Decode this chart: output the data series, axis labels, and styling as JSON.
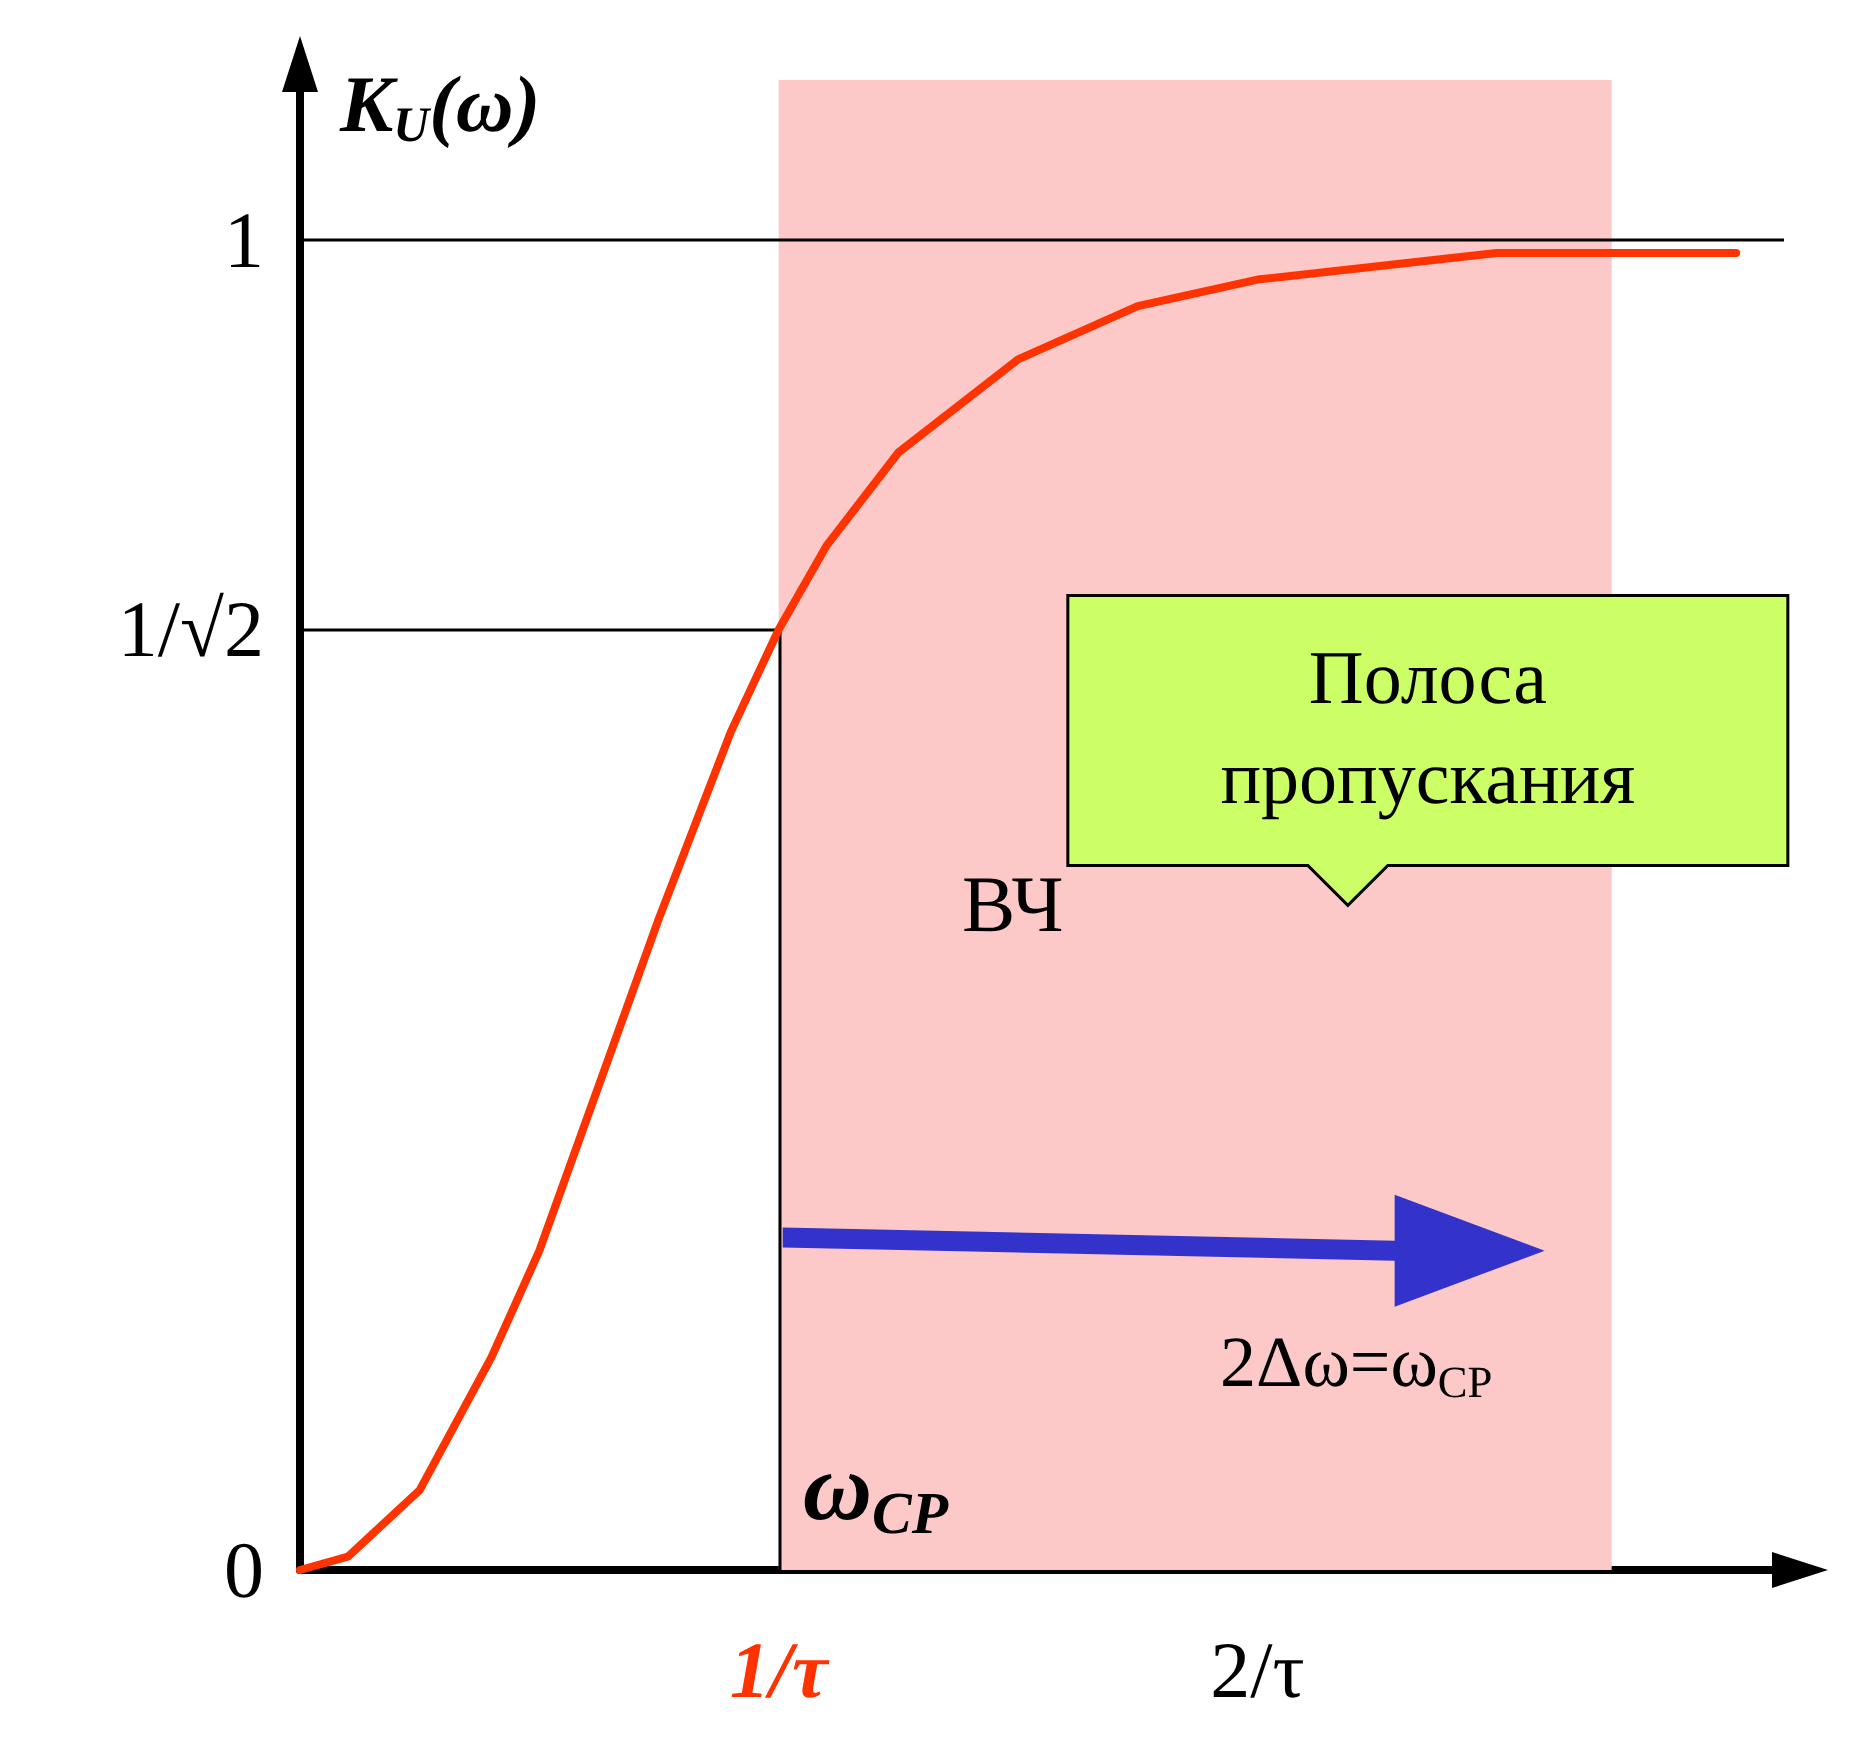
{
  "chart_data": {
    "type": "line",
    "ylabel": "K$_{U}$(ω)",
    "x": [
      0,
      0.1,
      0.25,
      0.4,
      0.5,
      0.6,
      0.75,
      0.9,
      1,
      1.1,
      1.25,
      1.5,
      1.75,
      2,
      2.5,
      3
    ],
    "series": [
      {
        "color": "#ff3300",
        "values": [
          0,
          0.01,
          0.06,
          0.16,
          0.24,
          0.34,
          0.49,
          0.63,
          0.707,
          0.77,
          0.84,
          0.91,
          0.95,
          0.97,
          0.99,
          0.99
        ]
      }
    ],
    "xlim": [
      0,
      3.1
    ],
    "ylim": [
      0,
      1.12
    ],
    "xticks": [
      {
        "value": 1,
        "label": "1/τ"
      },
      {
        "value": 2,
        "label": "2/τ"
      }
    ],
    "yticks": [
      0,
      {
        "value": 0.707,
        "label": "1/√2"
      },
      1
    ],
    "ref_lines": [
      {
        "axis": "y",
        "value": 1
      },
      {
        "axis": "y",
        "value": 0.707
      },
      {
        "axis": "x",
        "value": 1
      }
    ],
    "bands": [
      {
        "axis": "x",
        "from": 1,
        "to": 2.74,
        "color": "#fcc8c8"
      }
    ],
    "annotations": [
      "ВЧ",
      "Полоса пропускания",
      "2Δω=ω$_{CP}$",
      {
        "text": "ω$_{CP}$",
        "x": 1,
        "y": 0
      }
    ],
    "grid": false,
    "marker": "none",
    "line_style": "solid"
  }
}
